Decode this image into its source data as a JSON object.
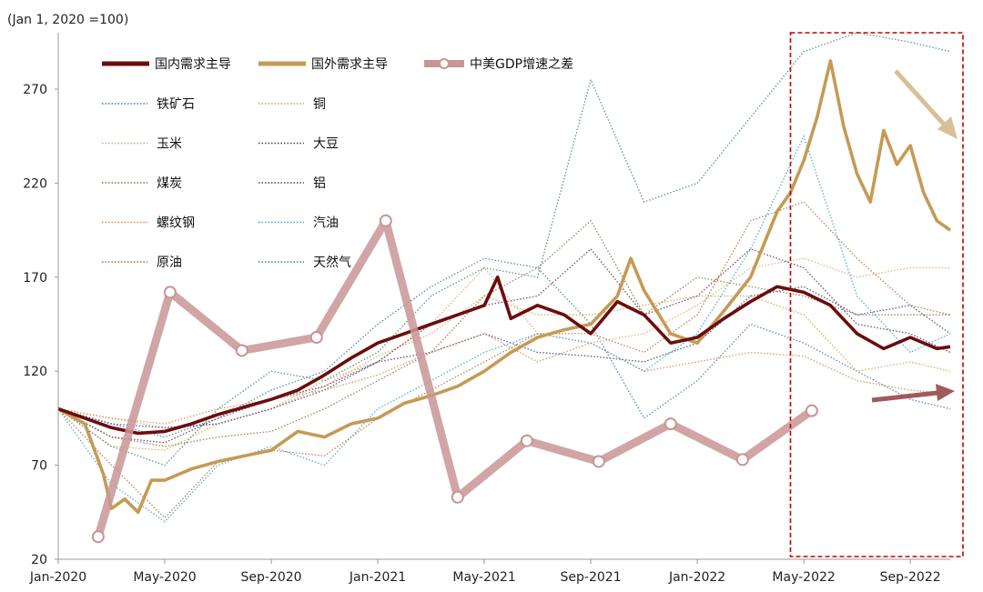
{
  "unit_label": "(Jan 1, 2020 =100)",
  "colors": {
    "domestic": "#6b0d0d",
    "foreign": "#c69a55",
    "gdp_gap": "#c99595",
    "highlight_box": "#c00000",
    "arrow_down": "#d8bf98",
    "arrow_right": "#a05a5a"
  },
  "chart_data": {
    "type": "line",
    "title": "",
    "xlabel": "",
    "ylabel": "",
    "ylim": [
      20,
      300
    ],
    "y_ticks": [
      20,
      70,
      120,
      170,
      220,
      270
    ],
    "x_ticks": [
      "Jan-2020",
      "May-2020",
      "Sep-2020",
      "Jan-2021",
      "May-2021",
      "Sep-2021",
      "Jan-2022",
      "May-2022",
      "Sep-2022"
    ],
    "x_tick_positions": [
      0,
      4,
      8,
      12,
      16,
      20,
      24,
      28,
      32
    ],
    "xlim": [
      0,
      33.5
    ],
    "highlight_region": {
      "from": 27.5,
      "to": 34.5
    },
    "trend_arrows": [
      {
        "series": "国外需求主导",
        "direction": "down"
      },
      {
        "series": "国内需求主导",
        "direction": "flat"
      }
    ],
    "legend": [
      {
        "name": "国内需求主导",
        "style": "thick",
        "color": "#6b0d0d"
      },
      {
        "name": "国外需求主导",
        "style": "thick",
        "color": "#c69a55"
      },
      {
        "name": "中美GDP增速之差",
        "style": "marker",
        "color": "#c99595"
      },
      {
        "name": "铁矿石",
        "style": "dotted",
        "color": "#3c7aa8"
      },
      {
        "name": "铜",
        "style": "dotted",
        "color": "#d4a04a"
      },
      {
        "name": "玉米",
        "style": "dotted",
        "color": "#e0a070"
      },
      {
        "name": "大豆",
        "style": "dotted",
        "color": "#3b3b7a"
      },
      {
        "name": "煤炭",
        "style": "dotted",
        "color": "#8a7040"
      },
      {
        "name": "铝",
        "style": "dotted",
        "color": "#603050"
      },
      {
        "name": "螺纹钢",
        "style": "dotted",
        "color": "#d08840"
      },
      {
        "name": "汽油",
        "style": "dotted",
        "color": "#3aa0c8"
      },
      {
        "name": "原油",
        "style": "dotted",
        "color": "#b86a3a"
      },
      {
        "name": "天然气",
        "style": "dotted",
        "color": "#3a8a70"
      }
    ],
    "series": [
      {
        "name": "国内需求主导",
        "x": [
          0,
          1,
          2,
          3,
          4,
          5,
          6,
          7,
          8,
          9,
          10,
          11,
          12,
          13,
          14,
          15,
          16,
          16.5,
          17,
          18,
          19,
          20,
          21,
          22,
          23,
          24,
          25,
          26,
          27,
          28,
          29,
          30,
          31,
          32,
          33,
          33.5
        ],
        "values": [
          100,
          95,
          90,
          87,
          88,
          92,
          97,
          101,
          105,
          110,
          118,
          127,
          135,
          140,
          145,
          150,
          155,
          170,
          148,
          155,
          150,
          140,
          157,
          150,
          135,
          138,
          148,
          157,
          165,
          162,
          155,
          140,
          132,
          138,
          132,
          133
        ]
      },
      {
        "name": "国外需求主导",
        "x": [
          0,
          1,
          1.7,
          2,
          2.5,
          3,
          3.5,
          4,
          5,
          6,
          7,
          8,
          9,
          10,
          11,
          12,
          13,
          14,
          15,
          16,
          17,
          18,
          19,
          20,
          21,
          21.5,
          22,
          23,
          24,
          25,
          26,
          27,
          27.5,
          28,
          28.5,
          29,
          29.5,
          30,
          30.5,
          31,
          31.5,
          32,
          32.5,
          33,
          33.5
        ],
        "values": [
          100,
          92,
          65,
          47,
          52,
          45,
          62,
          62,
          68,
          72,
          75,
          78,
          88,
          85,
          92,
          95,
          103,
          107,
          112,
          120,
          130,
          138,
          142,
          145,
          160,
          180,
          163,
          140,
          135,
          152,
          170,
          205,
          215,
          232,
          255,
          285,
          250,
          225,
          210,
          248,
          230,
          240,
          215,
          200,
          195
        ]
      },
      {
        "name": "中美GDP增速之差",
        "x": [
          1.5,
          4.2,
          6.9,
          9.7,
          12.3,
          15,
          17.6,
          20.3,
          23,
          25.7,
          28.3
        ],
        "values": [
          32,
          162,
          131,
          138,
          200,
          53,
          83,
          72,
          92,
          73,
          99
        ]
      },
      {
        "name": "铁矿石",
        "x": [
          0,
          2,
          4,
          6,
          8,
          10,
          12,
          14,
          16,
          18,
          20,
          22,
          24,
          26,
          28,
          30,
          32,
          33.5
        ],
        "values": [
          100,
          92,
          85,
          95,
          110,
          120,
          145,
          165,
          180,
          175,
          145,
          95,
          115,
          145,
          135,
          120,
          105,
          100
        ]
      },
      {
        "name": "铜",
        "x": [
          0,
          2,
          4,
          6,
          8,
          10,
          12,
          14,
          16,
          18,
          20,
          22,
          24,
          26,
          28,
          30,
          32,
          33.5
        ],
        "values": [
          100,
          80,
          78,
          92,
          100,
          112,
          128,
          140,
          160,
          150,
          150,
          155,
          160,
          160,
          150,
          120,
          125,
          120
        ]
      },
      {
        "name": "玉米",
        "x": [
          0,
          2,
          4,
          6,
          8,
          10,
          12,
          14,
          16,
          18,
          20,
          22,
          24,
          26,
          28,
          30,
          32,
          33.5
        ],
        "values": [
          100,
          95,
          90,
          92,
          100,
          115,
          125,
          145,
          175,
          140,
          135,
          140,
          155,
          175,
          180,
          170,
          175,
          175
        ]
      },
      {
        "name": "大豆",
        "x": [
          0,
          2,
          4,
          6,
          8,
          10,
          12,
          14,
          16,
          18,
          20,
          22,
          24,
          26,
          28,
          30,
          32,
          33.5
        ],
        "values": [
          100,
          92,
          90,
          92,
          100,
          110,
          125,
          130,
          140,
          130,
          128,
          125,
          135,
          160,
          165,
          150,
          155,
          140
        ]
      },
      {
        "name": "煤炭",
        "x": [
          0,
          2,
          4,
          6,
          8,
          10,
          12,
          14,
          16,
          18,
          20,
          22,
          24,
          26,
          28,
          30,
          32,
          33.5
        ],
        "values": [
          100,
          85,
          80,
          85,
          88,
          100,
          115,
          130,
          160,
          175,
          200,
          150,
          170,
          165,
          160,
          150,
          150,
          150
        ]
      },
      {
        "name": "铝",
        "x": [
          0,
          2,
          4,
          6,
          8,
          10,
          12,
          14,
          16,
          18,
          20,
          22,
          24,
          26,
          28,
          30,
          32,
          33.5
        ],
        "values": [
          100,
          85,
          82,
          95,
          105,
          112,
          125,
          145,
          155,
          160,
          185,
          150,
          160,
          185,
          175,
          145,
          140,
          130
        ]
      },
      {
        "name": "螺纹钢",
        "x": [
          0,
          2,
          4,
          6,
          8,
          10,
          12,
          14,
          16,
          18,
          20,
          22,
          24,
          26,
          28,
          30,
          32,
          33.5
        ],
        "values": [
          100,
          95,
          92,
          100,
          105,
          110,
          118,
          130,
          140,
          125,
          135,
          120,
          125,
          130,
          128,
          115,
          110,
          108
        ]
      },
      {
        "name": "汽油",
        "x": [
          0,
          2,
          4,
          6,
          8,
          10,
          12,
          14,
          16,
          18,
          20,
          22,
          24,
          26,
          28,
          30,
          32,
          33.5
        ],
        "values": [
          100,
          60,
          40,
          70,
          80,
          70,
          100,
          115,
          130,
          140,
          135,
          120,
          140,
          185,
          245,
          160,
          130,
          140
        ]
      },
      {
        "name": "原油",
        "x": [
          0,
          2,
          4,
          6,
          8,
          10,
          12,
          14,
          16,
          18,
          20,
          22,
          24,
          26,
          28,
          30,
          32,
          33.5
        ],
        "values": [
          100,
          70,
          42,
          72,
          78,
          75,
          95,
          110,
          125,
          140,
          140,
          130,
          150,
          200,
          210,
          180,
          155,
          150
        ]
      },
      {
        "name": "天然气",
        "x": [
          0,
          2,
          4,
          6,
          8,
          10,
          12,
          14,
          16,
          18,
          20,
          22,
          24,
          26,
          28,
          30,
          32,
          33.5
        ],
        "values": [
          100,
          80,
          70,
          100,
          120,
          115,
          130,
          160,
          175,
          170,
          275,
          210,
          220,
          255,
          290,
          300,
          295,
          290
        ]
      }
    ]
  }
}
